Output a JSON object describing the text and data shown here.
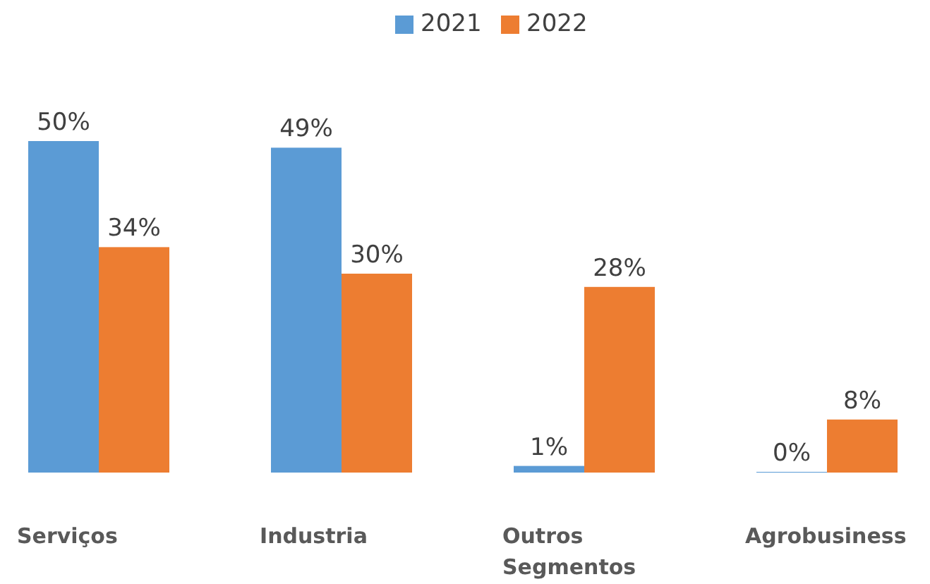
{
  "chart_data": {
    "type": "bar",
    "categories": [
      "Serviços",
      "Industria",
      "Outros Segmentos",
      "Agrobusiness"
    ],
    "series": [
      {
        "name": "2021",
        "color": "#5b9bd5",
        "values": [
          50,
          49,
          1,
          0
        ],
        "value_labels": [
          "50%",
          "49%",
          "1%",
          "0%"
        ]
      },
      {
        "name": "2022",
        "color": "#ed7d31",
        "values": [
          34,
          30,
          28,
          8
        ],
        "value_labels": [
          "34%",
          "30%",
          "28%",
          "8%"
        ]
      }
    ],
    "legend": "top"
  }
}
